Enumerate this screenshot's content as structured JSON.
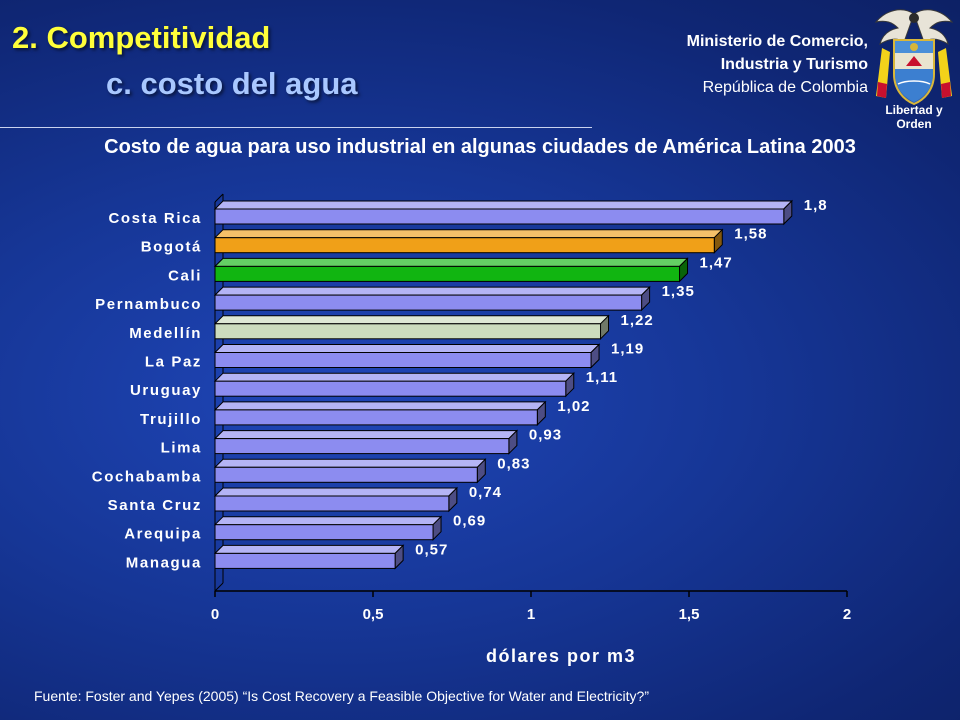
{
  "slide": {
    "title": "2. Competitividad",
    "subtitle": "c. costo del agua"
  },
  "ministry": {
    "line1": "Ministerio de Comercio,",
    "line2": "Industria y Turismo",
    "line3": "República de Colombia",
    "motto": "Libertad y Orden"
  },
  "source": "Fuente: Foster and Yepes (2005) “Is Cost Recovery a Feasible Objective for Water and Electricity?”",
  "chart_data": {
    "type": "bar",
    "orientation": "horizontal",
    "title": "Costo de agua para uso industrial en algunas ciudades de América Latina 2003",
    "xlabel": "dólares por m3",
    "ylabel": "",
    "xlim": [
      0,
      2
    ],
    "xticks": [
      "0",
      "0,5",
      "1",
      "1,5",
      "2"
    ],
    "grid": false,
    "legend": "none",
    "categories": [
      "Costa Rica",
      "Bogotá",
      "Cali",
      "Pernambuco",
      "Medellín",
      "La Paz",
      "Uruguay",
      "Trujillo",
      "Lima",
      "Cochabamba",
      "Santa Cruz",
      "Arequipa",
      "Managua"
    ],
    "values": [
      1.8,
      1.58,
      1.47,
      1.35,
      1.22,
      1.19,
      1.11,
      1.02,
      0.93,
      0.83,
      0.74,
      0.69,
      0.57
    ],
    "value_labels": [
      "1,8",
      "1,58",
      "1,47",
      "1,35",
      "1,22",
      "1,19",
      "1,11",
      "1,02",
      "0,93",
      "0,83",
      "0,74",
      "0,69",
      "0,57"
    ],
    "colors": {
      "default": "#8c8cf0",
      "Bogotá": "#f0a018",
      "Cali": "#11b511",
      "Medellín": "#ccdcbe"
    }
  }
}
